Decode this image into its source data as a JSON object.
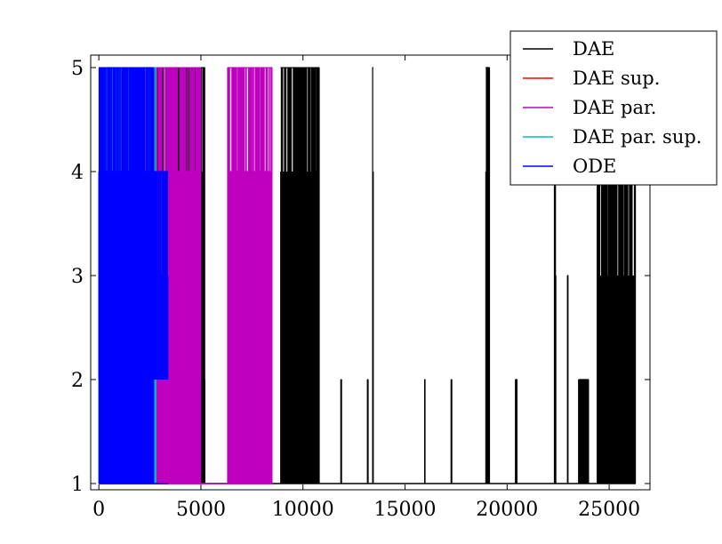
{
  "chart_data": {
    "type": "line",
    "title": "",
    "xlabel": "",
    "ylabel": "",
    "xlim": [
      -400,
      27000
    ],
    "ylim": [
      0.94,
      5.12
    ],
    "xticks": [
      0,
      5000,
      10000,
      15000,
      20000,
      25000
    ],
    "xtick_labels": [
      "0",
      "5000",
      "10000",
      "15000",
      "20000",
      "25000"
    ],
    "yticks": [
      1,
      2,
      3,
      4,
      5
    ],
    "ytick_labels": [
      "1",
      "2",
      "3",
      "4",
      "5"
    ],
    "grid": false,
    "legend_position": "top-right",
    "series": [
      {
        "name": "DAE",
        "color": "#000000",
        "x_range": [
          0,
          26300
        ],
        "segments": [
          {
            "x": [
              0,
              5200
            ],
            "low": 1,
            "high": 5
          },
          {
            "x": [
              5000,
              5200
            ],
            "low": 1,
            "high": 2
          },
          {
            "x": [
              8900,
              10800
            ],
            "low": 1,
            "high": 5
          },
          {
            "x": [
              9600,
              10000
            ],
            "low": 2,
            "high": 4
          },
          {
            "x": [
              10400,
              10800
            ],
            "low": 2,
            "high": 4
          },
          {
            "x": [
              11850,
              11900
            ],
            "low": 1,
            "high": 2
          },
          {
            "x": [
              13150,
              13200
            ],
            "low": 1,
            "high": 2
          },
          {
            "x": [
              13400,
              13450
            ],
            "low": 1,
            "high": 5
          },
          {
            "x": [
              15950,
              16000
            ],
            "low": 1,
            "high": 2
          },
          {
            "x": [
              17250,
              17300
            ],
            "low": 1,
            "high": 2
          },
          {
            "x": [
              18950,
              19150
            ],
            "low": 1,
            "high": 5
          },
          {
            "x": [
              20400,
              20500
            ],
            "low": 1,
            "high": 2
          },
          {
            "x": [
              22300,
              22400
            ],
            "low": 1,
            "high": 4
          },
          {
            "x": [
              22950,
              23000
            ],
            "low": 1,
            "high": 3
          },
          {
            "x": [
              23500,
              24000
            ],
            "low": 1,
            "high": 2
          },
          {
            "x": [
              24400,
              26300
            ],
            "low": 1,
            "high": 4
          }
        ]
      },
      {
        "name": "DAE sup.",
        "color": "#ff0000",
        "x_range": [
          0,
          2600
        ],
        "segments": [
          {
            "x": [
              100,
              350
            ],
            "low": 1,
            "high": 2
          },
          {
            "x": [
              400,
              600
            ],
            "low": 1,
            "high": 5
          }
        ]
      },
      {
        "name": "DAE par.",
        "color": "#bf00bf",
        "x_range": [
          0,
          8500
        ],
        "segments": [
          {
            "x": [
              0,
              5000
            ],
            "low": 1,
            "high": 5
          },
          {
            "x": [
              3400,
              5000
            ],
            "low": 2,
            "high": 4
          },
          {
            "x": [
              6300,
              8500
            ],
            "low": 1,
            "high": 5
          },
          {
            "x": [
              6300,
              8400
            ],
            "low": 2,
            "high": 4
          }
        ]
      },
      {
        "name": "DAE par. sup.",
        "color": "#00bfbf",
        "x_range": [
          0,
          2800
        ],
        "segments": [
          {
            "x": [
              0,
              2800
            ],
            "low": 1,
            "high": 5
          }
        ]
      },
      {
        "name": "ODE",
        "color": "#0000ff",
        "x_range": [
          0,
          3400
        ],
        "segments": [
          {
            "x": [
              0,
              2700
            ],
            "low": 1,
            "high": 5
          },
          {
            "x": [
              0,
              3400
            ],
            "low": 2,
            "high": 4
          }
        ]
      }
    ]
  }
}
